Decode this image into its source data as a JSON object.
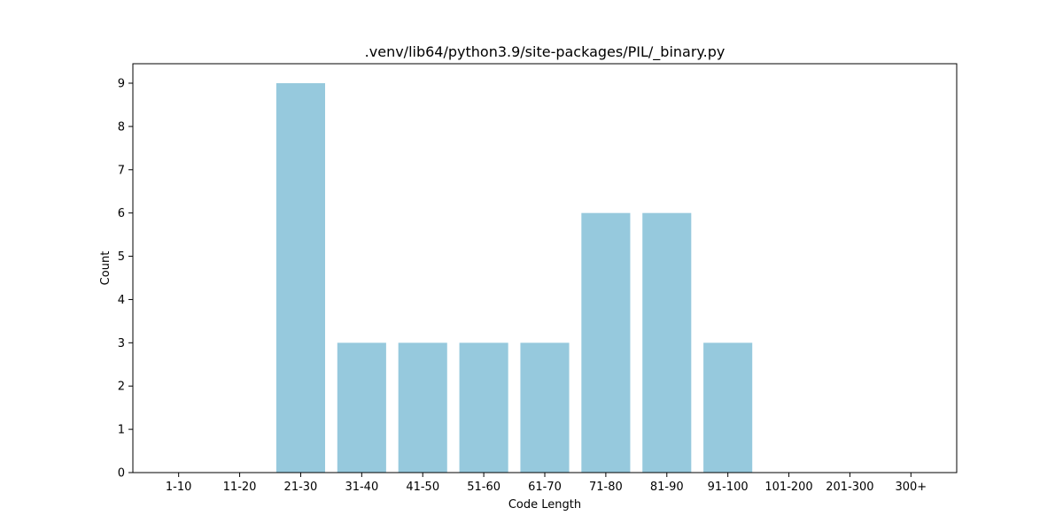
{
  "chart_data": {
    "type": "bar",
    "title": ".venv/lib64/python3.9/site-packages/PIL/_binary.py",
    "xlabel": "Code Length",
    "ylabel": "Count",
    "categories": [
      "1-10",
      "11-20",
      "21-30",
      "31-40",
      "41-50",
      "51-60",
      "61-70",
      "71-80",
      "81-90",
      "91-100",
      "101-200",
      "201-300",
      "300+"
    ],
    "values": [
      0,
      0,
      9,
      3,
      3,
      3,
      3,
      6,
      6,
      3,
      0,
      0,
      0
    ],
    "ylim": [
      0,
      9.45
    ],
    "yticks": [
      0,
      1,
      2,
      3,
      4,
      5,
      6,
      7,
      8,
      9
    ],
    "bar_color": "#96c9dd",
    "grid": false,
    "legend": "none"
  }
}
